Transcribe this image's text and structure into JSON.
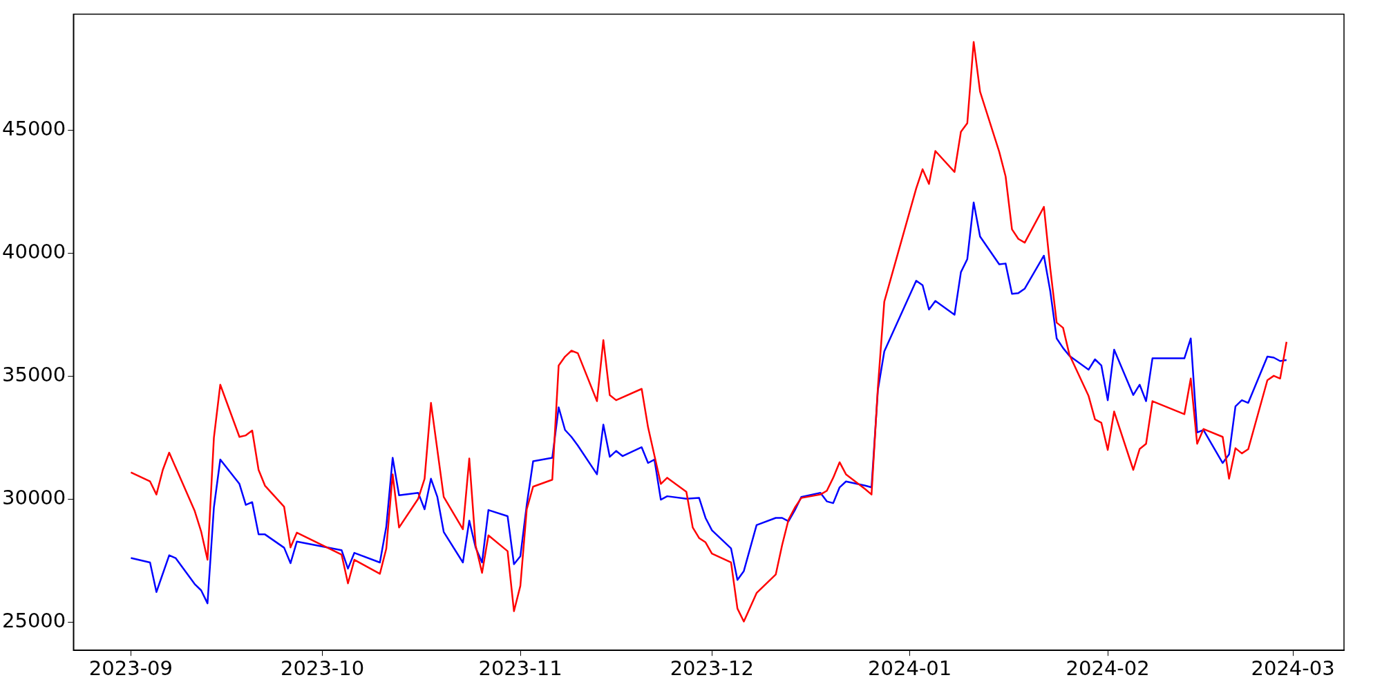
{
  "chart_data": {
    "type": "line",
    "grid": false,
    "legend": false,
    "marker": "none",
    "line_style": "solid",
    "xlim": [
      "2023-08-23",
      "2024-03-09"
    ],
    "ylim": [
      23870,
      49710
    ],
    "xticks": [
      "2023-09",
      "2023-10",
      "2023-11",
      "2023-12",
      "2024-01",
      "2024-02",
      "2024-03"
    ],
    "yticks": [
      25000,
      30000,
      35000,
      40000,
      45000
    ],
    "series": [
      {
        "color": "#ff0000",
        "x": [
          "2023-09-01",
          "2023-09-04",
          "2023-09-05",
          "2023-09-06",
          "2023-09-07",
          "2023-09-11",
          "2023-09-12",
          "2023-09-13",
          "2023-09-14",
          "2023-09-15",
          "2023-09-18",
          "2023-09-19",
          "2023-09-20",
          "2023-09-21",
          "2023-09-22",
          "2023-09-25",
          "2023-09-26",
          "2023-09-27",
          "2023-10-04",
          "2023-10-05",
          "2023-10-06",
          "2023-10-10",
          "2023-10-11",
          "2023-10-12",
          "2023-10-13",
          "2023-10-16",
          "2023-10-17",
          "2023-10-18",
          "2023-10-20",
          "2023-10-23",
          "2023-10-24",
          "2023-10-25",
          "2023-10-26",
          "2023-10-27",
          "2023-10-30",
          "2023-10-31",
          "2023-11-01",
          "2023-11-02",
          "2023-11-03",
          "2023-11-06",
          "2023-11-07",
          "2023-11-08",
          "2023-11-09",
          "2023-11-10",
          "2023-11-13",
          "2023-11-14",
          "2023-11-15",
          "2023-11-16",
          "2023-11-20",
          "2023-11-21",
          "2023-11-23",
          "2023-11-24",
          "2023-11-27",
          "2023-11-28",
          "2023-11-29",
          "2023-11-30",
          "2023-12-01",
          "2023-12-04",
          "2023-12-05",
          "2023-12-06",
          "2023-12-08",
          "2023-12-11",
          "2023-12-12",
          "2023-12-13",
          "2023-12-14",
          "2023-12-15",
          "2023-12-18",
          "2023-12-19",
          "2023-12-20",
          "2023-12-21",
          "2023-12-22",
          "2023-12-25",
          "2023-12-26",
          "2023-12-27",
          "2023-12-28",
          "2024-01-02",
          "2024-01-03",
          "2024-01-04",
          "2024-01-05",
          "2024-01-08",
          "2024-01-09",
          "2024-01-10",
          "2024-01-11",
          "2024-01-12",
          "2024-01-15",
          "2024-01-16",
          "2024-01-17",
          "2024-01-18",
          "2024-01-19",
          "2024-01-22",
          "2024-01-23",
          "2024-01-24",
          "2024-01-25",
          "2024-01-26",
          "2024-01-29",
          "2024-01-30",
          "2024-01-31",
          "2024-02-01",
          "2024-02-02",
          "2024-02-05",
          "2024-02-06",
          "2024-02-07",
          "2024-02-08",
          "2024-02-13",
          "2024-02-14",
          "2024-02-15",
          "2024-02-16",
          "2024-02-19",
          "2024-02-20",
          "2024-02-21",
          "2024-02-22",
          "2024-02-23",
          "2024-02-26",
          "2024-02-27",
          "2024-02-28",
          "2024-02-29"
        ],
        "values": [
          31100,
          30730,
          30200,
          31200,
          31900,
          29530,
          28700,
          27550,
          32500,
          34660,
          32540,
          32600,
          32800,
          31200,
          30560,
          29700,
          28050,
          28650,
          27760,
          26590,
          27550,
          26980,
          28000,
          31020,
          28860,
          30030,
          30840,
          33920,
          30100,
          28790,
          31660,
          28120,
          27020,
          28540,
          27900,
          25460,
          26490,
          29600,
          30520,
          30800,
          35440,
          35800,
          36040,
          35940,
          33990,
          36470,
          34240,
          34030,
          34490,
          32930,
          30630,
          30880,
          30310,
          28860,
          28430,
          28260,
          27800,
          27440,
          25570,
          25040,
          26200,
          26950,
          28150,
          29180,
          29670,
          30060,
          30200,
          30350,
          30880,
          31510,
          31020,
          30420,
          30200,
          34560,
          38030,
          42630,
          43410,
          42810,
          44150,
          43300,
          44930,
          45280,
          48580,
          46560,
          44120,
          43120,
          40970,
          40580,
          40430,
          41880,
          39370,
          37180,
          36970,
          35870,
          34200,
          33250,
          33110,
          32010,
          33570,
          31200,
          32050,
          32260,
          33990,
          33460,
          34910,
          32260,
          32860,
          32540,
          30840,
          32080,
          31870,
          32040,
          34840,
          35020,
          34910,
          36400
        ]
      },
      {
        "color": "#0000ff",
        "x": [
          "2023-09-01",
          "2023-09-04",
          "2023-09-05",
          "2023-09-07",
          "2023-09-08",
          "2023-09-11",
          "2023-09-12",
          "2023-09-13",
          "2023-09-14",
          "2023-09-15",
          "2023-09-18",
          "2023-09-19",
          "2023-09-20",
          "2023-09-21",
          "2023-09-22",
          "2023-09-25",
          "2023-09-26",
          "2023-09-27",
          "2023-10-04",
          "2023-10-05",
          "2023-10-06",
          "2023-10-10",
          "2023-10-11",
          "2023-10-12",
          "2023-10-13",
          "2023-10-16",
          "2023-10-17",
          "2023-10-18",
          "2023-10-19",
          "2023-10-20",
          "2023-10-23",
          "2023-10-24",
          "2023-10-25",
          "2023-10-26",
          "2023-10-27",
          "2023-10-30",
          "2023-10-31",
          "2023-11-01",
          "2023-11-02",
          "2023-11-03",
          "2023-11-06",
          "2023-11-07",
          "2023-11-08",
          "2023-11-09",
          "2023-11-10",
          "2023-11-13",
          "2023-11-14",
          "2023-11-15",
          "2023-11-16",
          "2023-11-17",
          "2023-11-20",
          "2023-11-21",
          "2023-11-22",
          "2023-11-23",
          "2023-11-24",
          "2023-11-27",
          "2023-11-29",
          "2023-11-30",
          "2023-12-01",
          "2023-12-04",
          "2023-12-05",
          "2023-12-06",
          "2023-12-08",
          "2023-12-11",
          "2023-12-12",
          "2023-12-13",
          "2023-12-14",
          "2023-12-15",
          "2023-12-18",
          "2023-12-19",
          "2023-12-20",
          "2023-12-21",
          "2023-12-22",
          "2023-12-25",
          "2023-12-26",
          "2023-12-27",
          "2023-12-28",
          "2024-01-02",
          "2024-01-03",
          "2024-01-04",
          "2024-01-05",
          "2024-01-08",
          "2024-01-09",
          "2024-01-10",
          "2024-01-11",
          "2024-01-12",
          "2024-01-15",
          "2024-01-16",
          "2024-01-17",
          "2024-01-18",
          "2024-01-19",
          "2024-01-22",
          "2024-01-23",
          "2024-01-24",
          "2024-01-25",
          "2024-01-26",
          "2024-01-29",
          "2024-01-30",
          "2024-01-31",
          "2024-02-01",
          "2024-02-02",
          "2024-02-05",
          "2024-02-06",
          "2024-02-07",
          "2024-02-08",
          "2024-02-13",
          "2024-02-14",
          "2024-02-15",
          "2024-02-16",
          "2024-02-19",
          "2024-02-20",
          "2024-02-21",
          "2024-02-22",
          "2024-02-23",
          "2024-02-26",
          "2024-02-27",
          "2024-02-28",
          "2024-02-29"
        ],
        "values": [
          27620,
          27440,
          26240,
          27730,
          27620,
          26560,
          26310,
          25780,
          29670,
          31620,
          30630,
          29780,
          29890,
          28580,
          28580,
          28040,
          27410,
          28290,
          27940,
          27190,
          27830,
          27440,
          28890,
          31690,
          30170,
          30270,
          29600,
          30840,
          30100,
          28680,
          27440,
          29140,
          28040,
          27440,
          29570,
          29320,
          27370,
          27690,
          29780,
          31550,
          31690,
          33740,
          32820,
          32540,
          32190,
          31020,
          33040,
          31730,
          31970,
          31760,
          32120,
          31480,
          31620,
          29990,
          30130,
          30030,
          30060,
          29250,
          28750,
          28010,
          26730,
          27090,
          28960,
          29250,
          29250,
          29110,
          29570,
          30100,
          30270,
          29920,
          29850,
          30490,
          30730,
          30560,
          30490,
          34450,
          36010,
          38880,
          38700,
          37710,
          38060,
          37500,
          39230,
          39760,
          42060,
          40680,
          39550,
          39580,
          38350,
          38380,
          38560,
          39900,
          38450,
          36540,
          36150,
          35830,
          35270,
          35690,
          35440,
          34030,
          36080,
          34240,
          34660,
          33990,
          35730,
          35730,
          36540,
          32720,
          32820,
          31480,
          31830,
          33780,
          34030,
          33920,
          35800,
          35760,
          35620,
          35660
        ]
      }
    ]
  }
}
